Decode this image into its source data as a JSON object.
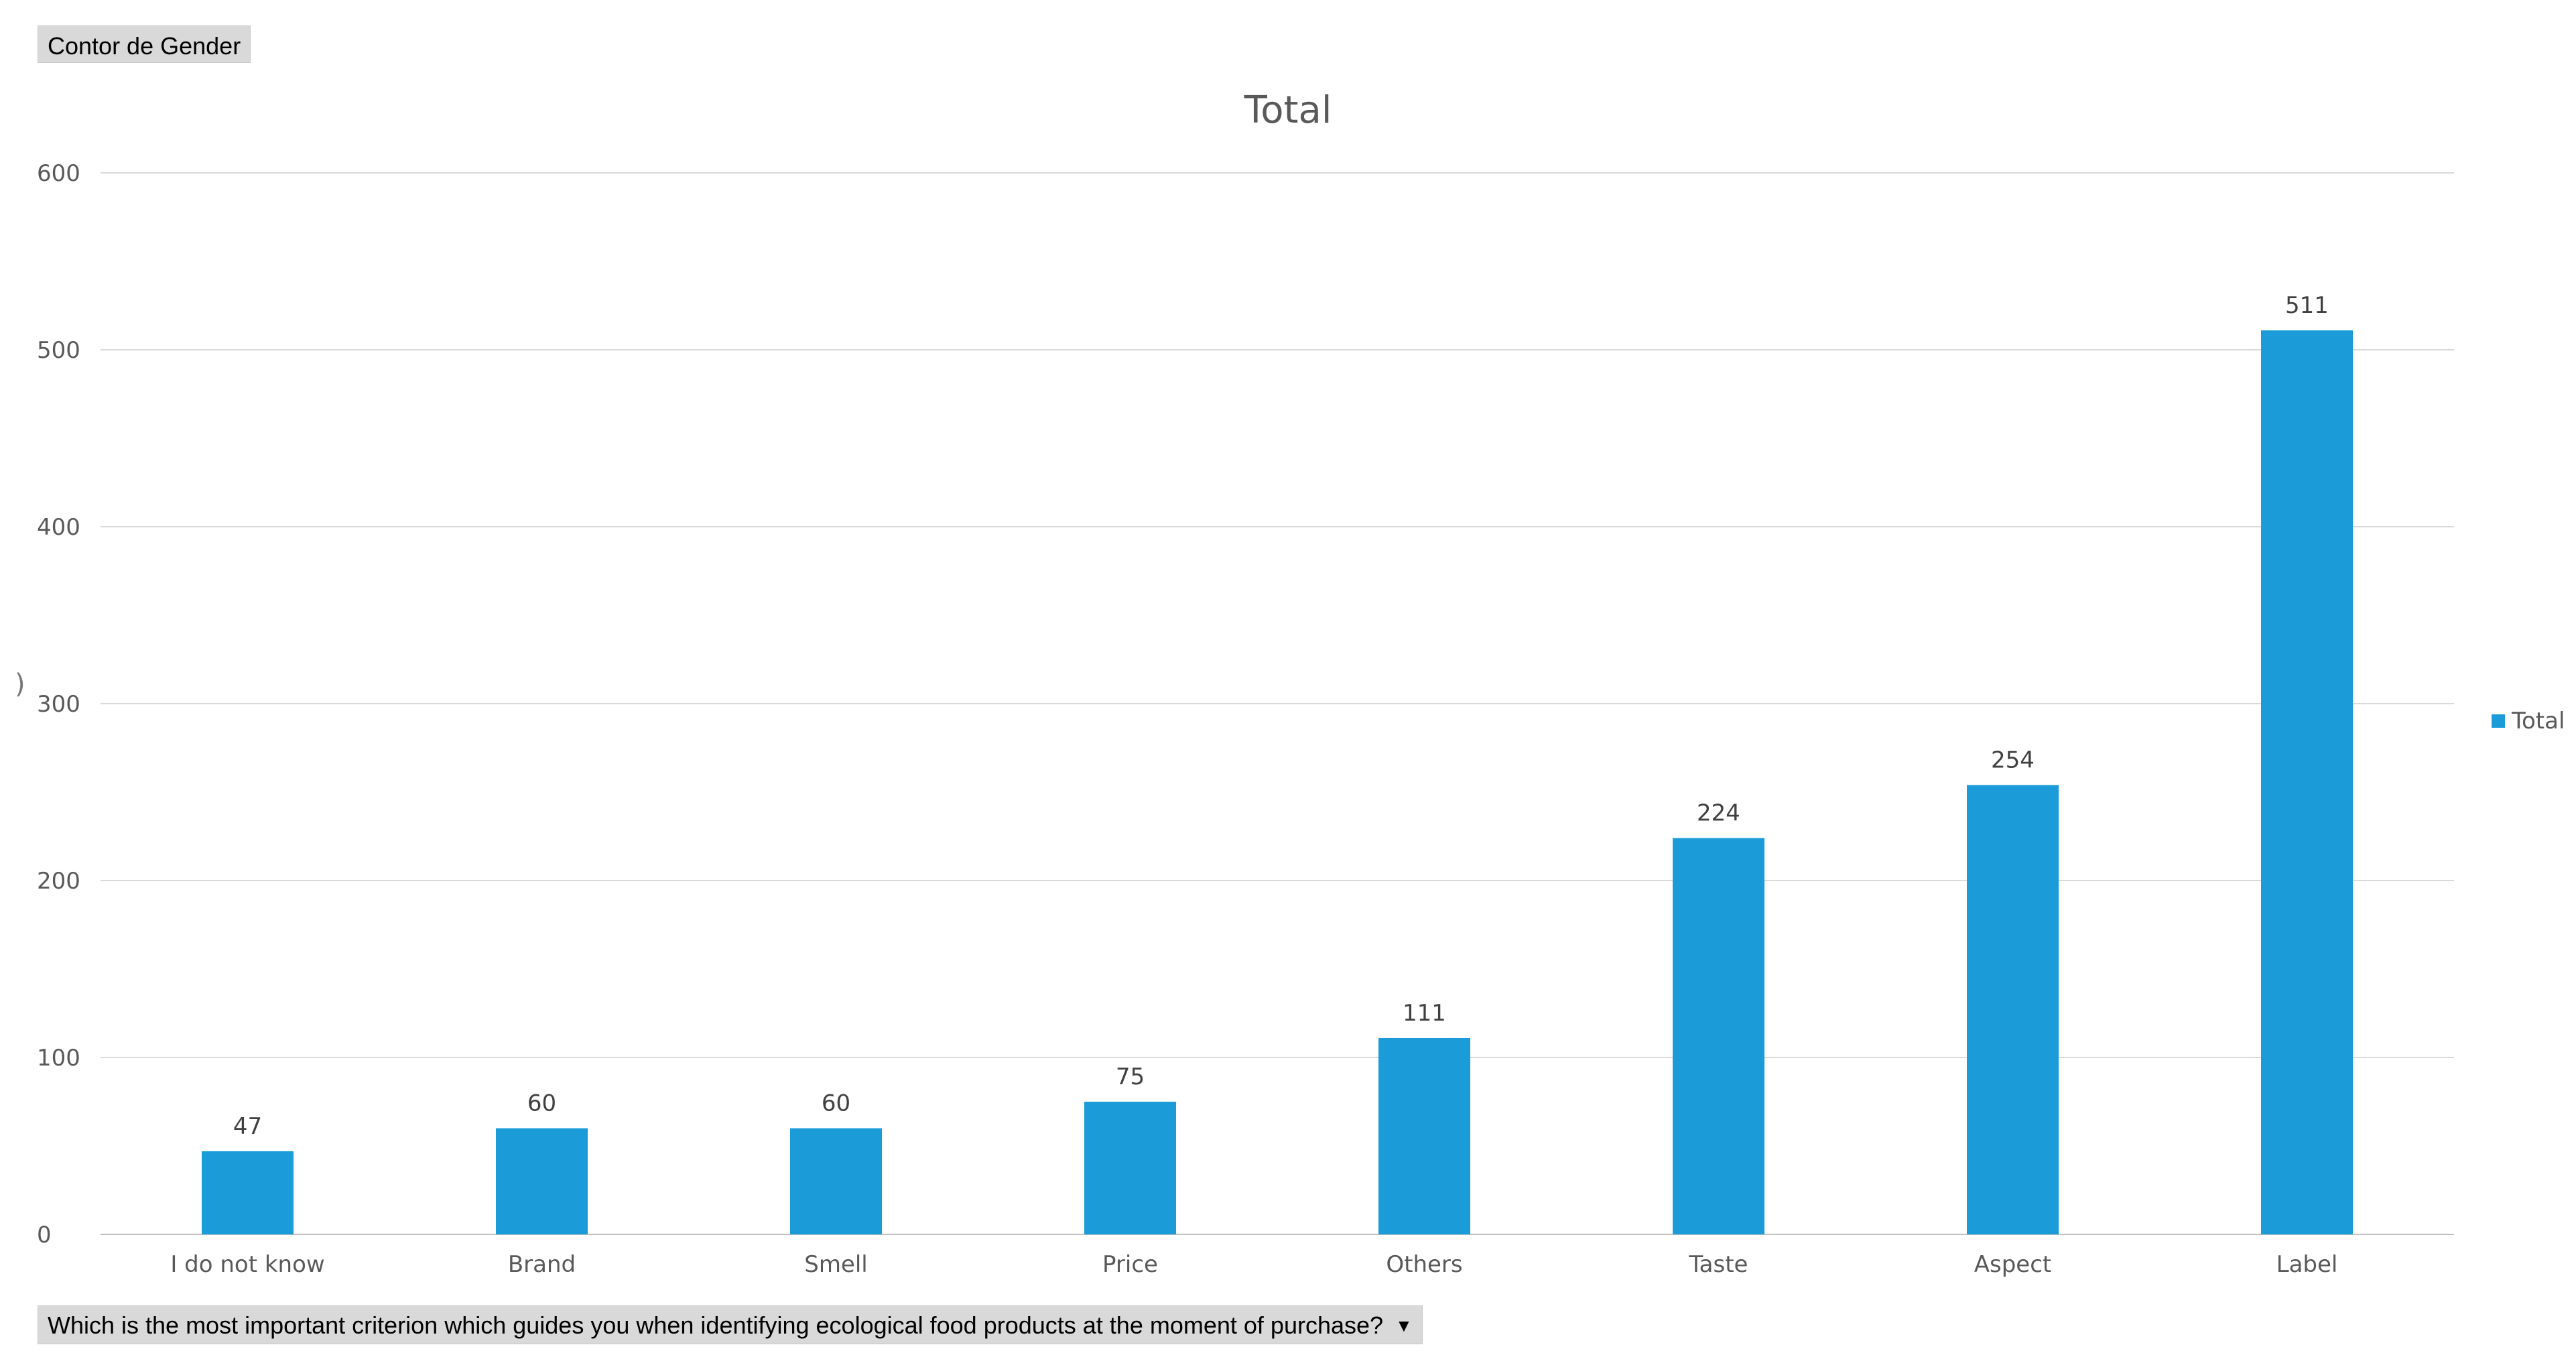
{
  "value_field": {
    "label": "Contor de Gender"
  },
  "axis_field": {
    "label": "Which is  the most important criterion which guides you when identifying ecological food products at the moment  of purchase?",
    "dropdown_icon": "triangle-down-icon"
  },
  "colors": {
    "bar": "#1b9cd8",
    "grid": "#d9d9d9",
    "axis": "#bfbfbf"
  },
  "chart_data": {
    "type": "bar",
    "title": "Total",
    "categories": [
      "I do not know",
      "Brand",
      "Smell",
      "Price",
      "Others",
      "Taste",
      "Aspect",
      "Label"
    ],
    "series": [
      {
        "name": "Total",
        "values": [
          47,
          60,
          60,
          75,
          111,
          224,
          254,
          511
        ]
      }
    ],
    "ylim": [
      0,
      600
    ],
    "yticks": [
      0,
      100,
      200,
      300,
      400,
      500,
      600
    ],
    "grid": true,
    "legend": "right",
    "data_labels": true
  }
}
